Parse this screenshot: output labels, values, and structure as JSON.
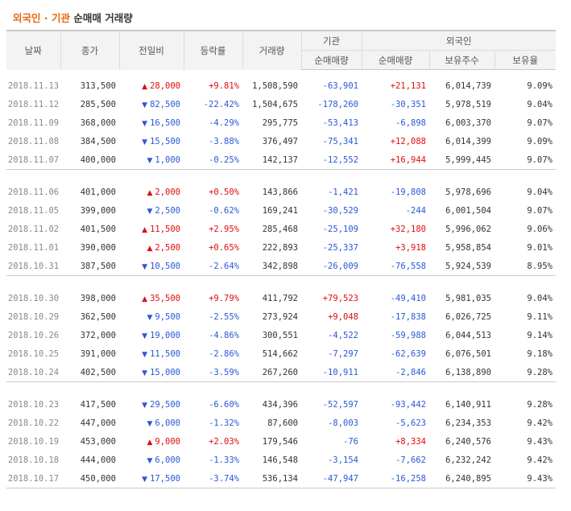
{
  "title": {
    "part1": "외국인",
    "sep": " · ",
    "part2": "기관",
    "part3": " 순매매 거래량"
  },
  "headers": {
    "date": "날짜",
    "close": "종가",
    "change": "전일비",
    "rate": "등락률",
    "volume": "거래량",
    "institution": "기관",
    "foreign": "외국인",
    "inst_net": "순매매량",
    "foreign_net": "순매매량",
    "foreign_hold": "보유주수",
    "foreign_ratio": "보유율"
  },
  "groups": [
    [
      {
        "date": "2018.11.13",
        "close": "313,500",
        "dir": "up",
        "change": "28,000",
        "rate": "+9.81%",
        "volume": "1,508,590",
        "inst": "-63,901",
        "foreign": "+21,131",
        "hold": "6,014,739",
        "ratio": "9.09%"
      },
      {
        "date": "2018.11.12",
        "close": "285,500",
        "dir": "down",
        "change": "82,500",
        "rate": "-22.42%",
        "volume": "1,504,675",
        "inst": "-178,260",
        "foreign": "-30,351",
        "hold": "5,978,519",
        "ratio": "9.04%"
      },
      {
        "date": "2018.11.09",
        "close": "368,000",
        "dir": "down",
        "change": "16,500",
        "rate": "-4.29%",
        "volume": "295,775",
        "inst": "-53,413",
        "foreign": "-6,898",
        "hold": "6,003,370",
        "ratio": "9.07%"
      },
      {
        "date": "2018.11.08",
        "close": "384,500",
        "dir": "down",
        "change": "15,500",
        "rate": "-3.88%",
        "volume": "376,497",
        "inst": "-75,341",
        "foreign": "+12,088",
        "hold": "6,014,399",
        "ratio": "9.09%"
      },
      {
        "date": "2018.11.07",
        "close": "400,000",
        "dir": "down",
        "change": "1,000",
        "rate": "-0.25%",
        "volume": "142,137",
        "inst": "-12,552",
        "foreign": "+16,944",
        "hold": "5,999,445",
        "ratio": "9.07%"
      }
    ],
    [
      {
        "date": "2018.11.06",
        "close": "401,000",
        "dir": "up",
        "change": "2,000",
        "rate": "+0.50%",
        "volume": "143,866",
        "inst": "-1,421",
        "foreign": "-19,808",
        "hold": "5,978,696",
        "ratio": "9.04%"
      },
      {
        "date": "2018.11.05",
        "close": "399,000",
        "dir": "down",
        "change": "2,500",
        "rate": "-0.62%",
        "volume": "169,241",
        "inst": "-30,529",
        "foreign": "-244",
        "hold": "6,001,504",
        "ratio": "9.07%"
      },
      {
        "date": "2018.11.02",
        "close": "401,500",
        "dir": "up",
        "change": "11,500",
        "rate": "+2.95%",
        "volume": "285,468",
        "inst": "-25,109",
        "foreign": "+32,180",
        "hold": "5,996,062",
        "ratio": "9.06%"
      },
      {
        "date": "2018.11.01",
        "close": "390,000",
        "dir": "up",
        "change": "2,500",
        "rate": "+0.65%",
        "volume": "222,893",
        "inst": "-25,337",
        "foreign": "+3,918",
        "hold": "5,958,854",
        "ratio": "9.01%"
      },
      {
        "date": "2018.10.31",
        "close": "387,500",
        "dir": "down",
        "change": "10,500",
        "rate": "-2.64%",
        "volume": "342,898",
        "inst": "-26,009",
        "foreign": "-76,558",
        "hold": "5,924,539",
        "ratio": "8.95%"
      }
    ],
    [
      {
        "date": "2018.10.30",
        "close": "398,000",
        "dir": "up",
        "change": "35,500",
        "rate": "+9.79%",
        "volume": "411,792",
        "inst": "+79,523",
        "foreign": "-49,410",
        "hold": "5,981,035",
        "ratio": "9.04%"
      },
      {
        "date": "2018.10.29",
        "close": "362,500",
        "dir": "down",
        "change": "9,500",
        "rate": "-2.55%",
        "volume": "273,924",
        "inst": "+9,048",
        "foreign": "-17,838",
        "hold": "6,026,725",
        "ratio": "9.11%"
      },
      {
        "date": "2018.10.26",
        "close": "372,000",
        "dir": "down",
        "change": "19,000",
        "rate": "-4.86%",
        "volume": "300,551",
        "inst": "-4,522",
        "foreign": "-59,988",
        "hold": "6,044,513",
        "ratio": "9.14%"
      },
      {
        "date": "2018.10.25",
        "close": "391,000",
        "dir": "down",
        "change": "11,500",
        "rate": "-2.86%",
        "volume": "514,662",
        "inst": "-7,297",
        "foreign": "-62,639",
        "hold": "6,076,501",
        "ratio": "9.18%"
      },
      {
        "date": "2018.10.24",
        "close": "402,500",
        "dir": "down",
        "change": "15,000",
        "rate": "-3.59%",
        "volume": "267,260",
        "inst": "-10,911",
        "foreign": "-2,846",
        "hold": "6,138,890",
        "ratio": "9.28%"
      }
    ],
    [
      {
        "date": "2018.10.23",
        "close": "417,500",
        "dir": "down",
        "change": "29,500",
        "rate": "-6.60%",
        "volume": "434,396",
        "inst": "-52,597",
        "foreign": "-93,442",
        "hold": "6,140,911",
        "ratio": "9.28%"
      },
      {
        "date": "2018.10.22",
        "close": "447,000",
        "dir": "down",
        "change": "6,000",
        "rate": "-1.32%",
        "volume": "87,600",
        "inst": "-8,003",
        "foreign": "-5,623",
        "hold": "6,234,353",
        "ratio": "9.42%"
      },
      {
        "date": "2018.10.19",
        "close": "453,000",
        "dir": "up",
        "change": "9,000",
        "rate": "+2.03%",
        "volume": "179,546",
        "inst": "-76",
        "foreign": "+8,334",
        "hold": "6,240,576",
        "ratio": "9.43%"
      },
      {
        "date": "2018.10.18",
        "close": "444,000",
        "dir": "down",
        "change": "6,000",
        "rate": "-1.33%",
        "volume": "146,548",
        "inst": "-3,154",
        "foreign": "-7,662",
        "hold": "6,232,242",
        "ratio": "9.42%"
      },
      {
        "date": "2018.10.17",
        "close": "450,000",
        "dir": "down",
        "change": "17,500",
        "rate": "-3.74%",
        "volume": "536,134",
        "inst": "-47,947",
        "foreign": "-16,258",
        "hold": "6,240,895",
        "ratio": "9.43%"
      }
    ]
  ]
}
